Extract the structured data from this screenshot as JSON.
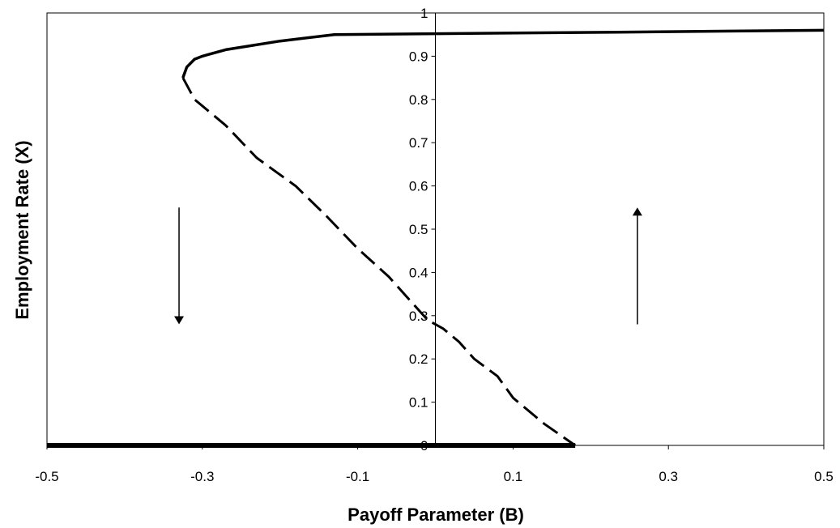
{
  "chart_data": {
    "type": "line",
    "title": "",
    "xlabel": "Payoff Parameter (B)",
    "ylabel": "Employment Rate (X)",
    "xlim": [
      -0.5,
      0.5
    ],
    "ylim": [
      0,
      1
    ],
    "x_ticks": [
      "-0.5",
      "-0.3",
      "-0.1",
      "0.1",
      "0.3",
      "0.5"
    ],
    "x_tick_values": [
      -0.5,
      -0.3,
      -0.1,
      0.1,
      0.3,
      0.5
    ],
    "y_ticks": [
      "0",
      "0.1",
      "0.2",
      "0.3",
      "0.4",
      "0.5",
      "0.6",
      "0.7",
      "0.8",
      "0.9",
      "1"
    ],
    "y_tick_values": [
      0,
      0.1,
      0.2,
      0.3,
      0.4,
      0.5,
      0.6,
      0.7,
      0.8,
      0.9,
      1
    ],
    "grid": false,
    "legend": "none",
    "series": [
      {
        "style": "solid",
        "points": [
          [
            -0.325,
            0.85
          ],
          [
            -0.32,
            0.875
          ],
          [
            -0.31,
            0.893
          ],
          [
            -0.3,
            0.9
          ],
          [
            -0.27,
            0.915
          ],
          [
            -0.2,
            0.935
          ],
          [
            -0.13,
            0.95
          ],
          [
            0.0,
            0.952
          ],
          [
            0.2,
            0.955
          ],
          [
            0.5,
            0.96
          ]
        ]
      },
      {
        "style": "dashed",
        "points": [
          [
            -0.325,
            0.85
          ],
          [
            -0.31,
            0.8
          ],
          [
            -0.27,
            0.74
          ],
          [
            -0.23,
            0.665
          ],
          [
            -0.18,
            0.6
          ],
          [
            -0.14,
            0.53
          ],
          [
            -0.1,
            0.455
          ],
          [
            -0.06,
            0.39
          ],
          [
            -0.03,
            0.33
          ],
          [
            -0.01,
            0.29
          ],
          [
            0.01,
            0.27
          ],
          [
            0.03,
            0.24
          ],
          [
            0.05,
            0.2
          ],
          [
            0.08,
            0.16
          ],
          [
            0.1,
            0.11
          ],
          [
            0.14,
            0.05
          ],
          [
            0.18,
            0.0
          ]
        ]
      },
      {
        "style": "solid-thick",
        "points": [
          [
            -0.5,
            0.0
          ],
          [
            0.18,
            0.0
          ]
        ]
      }
    ],
    "arrows": [
      {
        "direction": "down",
        "x": -0.33,
        "y_from": 0.55,
        "y_to": 0.28
      },
      {
        "direction": "up",
        "x": 0.26,
        "y_from": 0.28,
        "y_to": 0.55
      }
    ]
  }
}
